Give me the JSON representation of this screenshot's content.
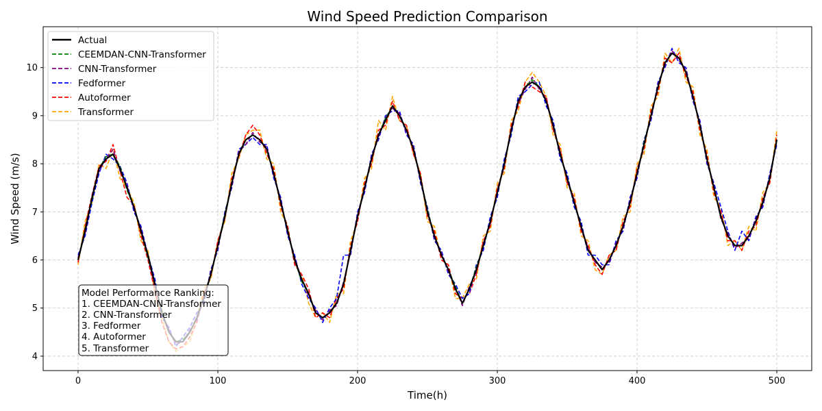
{
  "chart_data": {
    "type": "line",
    "title": "Wind Speed Prediction Comparison",
    "xlabel": "Time(h)",
    "ylabel": "Wind Speed (m/s)",
    "xlim": [
      -25,
      525
    ],
    "ylim": [
      3.7,
      10.85
    ],
    "xticks": [
      0,
      100,
      200,
      300,
      400,
      500
    ],
    "yticks": [
      4,
      5,
      6,
      7,
      8,
      9,
      10
    ],
    "grid": true,
    "legend_position": "top-left",
    "x": [
      0,
      5,
      10,
      15,
      20,
      25,
      30,
      35,
      40,
      45,
      50,
      55,
      60,
      65,
      70,
      75,
      80,
      85,
      90,
      95,
      100,
      105,
      110,
      115,
      120,
      125,
      130,
      135,
      140,
      145,
      150,
      155,
      160,
      165,
      170,
      175,
      180,
      185,
      190,
      195,
      200,
      205,
      210,
      215,
      220,
      225,
      230,
      235,
      240,
      245,
      250,
      255,
      260,
      265,
      270,
      275,
      280,
      285,
      290,
      295,
      300,
      305,
      310,
      315,
      320,
      325,
      330,
      335,
      340,
      345,
      350,
      355,
      360,
      365,
      370,
      375,
      380,
      385,
      390,
      395,
      400,
      405,
      410,
      415,
      420,
      425,
      430,
      435,
      440,
      445,
      450,
      455,
      460,
      465,
      470,
      475,
      480,
      485,
      490,
      495,
      500
    ],
    "series": [
      {
        "name": "Actual",
        "color": "#000000",
        "style": "solid",
        "values": [
          6.0,
          6.6,
          7.3,
          7.9,
          8.1,
          8.2,
          7.9,
          7.5,
          7.1,
          6.6,
          6.1,
          5.5,
          4.9,
          4.5,
          4.3,
          4.3,
          4.5,
          4.8,
          5.2,
          5.7,
          6.3,
          6.9,
          7.6,
          8.2,
          8.5,
          8.6,
          8.5,
          8.3,
          7.8,
          7.2,
          6.6,
          6.0,
          5.6,
          5.3,
          4.9,
          4.8,
          4.9,
          5.1,
          5.5,
          6.2,
          6.9,
          7.5,
          8.1,
          8.6,
          8.9,
          9.2,
          9.0,
          8.7,
          8.3,
          7.7,
          7.0,
          6.5,
          6.1,
          5.8,
          5.4,
          5.1,
          5.4,
          5.8,
          6.3,
          6.8,
          7.4,
          8.0,
          8.7,
          9.3,
          9.6,
          9.7,
          9.6,
          9.3,
          8.8,
          8.2,
          7.7,
          7.2,
          6.7,
          6.2,
          6.0,
          5.8,
          6.0,
          6.3,
          6.7,
          7.2,
          7.8,
          8.4,
          9.0,
          9.6,
          10.1,
          10.3,
          10.2,
          9.9,
          9.4,
          8.8,
          8.1,
          7.5,
          6.9,
          6.5,
          6.3,
          6.3,
          6.5,
          6.8,
          7.2,
          7.7,
          8.5
        ]
      },
      {
        "name": "CEEMDAN-CNN-Transformer",
        "color": "#008000",
        "style": "dashed",
        "values": [
          6.0,
          6.65,
          7.25,
          7.9,
          8.15,
          8.2,
          7.95,
          7.45,
          7.1,
          6.6,
          6.05,
          5.5,
          4.95,
          4.5,
          4.3,
          4.35,
          4.5,
          4.8,
          5.25,
          5.7,
          6.3,
          6.95,
          7.6,
          8.2,
          8.5,
          8.6,
          8.5,
          8.3,
          7.8,
          7.2,
          6.6,
          6.0,
          5.55,
          5.3,
          4.9,
          4.8,
          4.9,
          5.1,
          5.5,
          6.2,
          6.9,
          7.5,
          8.1,
          8.6,
          8.95,
          9.2,
          9.0,
          8.7,
          8.3,
          7.7,
          7.05,
          6.5,
          6.1,
          5.8,
          5.45,
          5.1,
          5.4,
          5.85,
          6.3,
          6.8,
          7.4,
          8.0,
          8.7,
          9.3,
          9.6,
          9.75,
          9.6,
          9.3,
          8.8,
          8.2,
          7.7,
          7.2,
          6.7,
          6.2,
          6.0,
          5.8,
          6.0,
          6.3,
          6.7,
          7.2,
          7.8,
          8.45,
          9.0,
          9.6,
          10.1,
          10.3,
          10.2,
          9.9,
          9.4,
          8.8,
          8.1,
          7.5,
          6.9,
          6.5,
          6.3,
          6.3,
          6.5,
          6.8,
          7.2,
          7.7,
          8.5
        ]
      },
      {
        "name": "CNN-Transformer",
        "color": "#800080",
        "style": "dashed",
        "values": [
          6.05,
          6.55,
          7.3,
          7.85,
          8.1,
          8.3,
          7.85,
          7.55,
          7.05,
          6.65,
          6.05,
          5.45,
          4.9,
          4.55,
          4.25,
          4.3,
          4.55,
          4.75,
          5.2,
          5.75,
          6.25,
          6.95,
          7.55,
          8.25,
          8.4,
          8.65,
          8.45,
          8.35,
          7.75,
          7.25,
          6.55,
          6.05,
          5.6,
          5.25,
          4.95,
          4.75,
          4.95,
          5.05,
          5.55,
          6.15,
          6.95,
          7.45,
          8.15,
          8.55,
          8.95,
          9.15,
          9.05,
          8.65,
          8.35,
          7.65,
          7.05,
          6.45,
          6.15,
          5.75,
          5.45,
          5.05,
          5.45,
          5.75,
          6.35,
          6.75,
          7.45,
          7.95,
          8.75,
          9.25,
          9.55,
          9.8,
          9.55,
          9.35,
          8.75,
          8.25,
          7.65,
          7.25,
          6.65,
          6.25,
          5.95,
          5.85,
          5.95,
          6.35,
          6.65,
          7.25,
          7.75,
          8.45,
          8.95,
          9.65,
          10.05,
          10.35,
          10.15,
          9.95,
          9.35,
          8.85,
          8.05,
          7.55,
          6.85,
          6.55,
          6.25,
          6.35,
          6.45,
          6.85,
          7.15,
          7.75,
          8.45
        ]
      },
      {
        "name": "Fedformer",
        "color": "#0000ff",
        "style": "dashed",
        "values": [
          6.1,
          6.5,
          7.2,
          7.8,
          8.2,
          8.1,
          7.95,
          7.6,
          7.0,
          6.7,
          6.1,
          5.6,
          4.8,
          4.6,
          4.2,
          4.4,
          4.6,
          4.9,
          5.1,
          5.8,
          6.2,
          7.0,
          7.5,
          8.3,
          8.4,
          8.55,
          8.4,
          8.4,
          7.7,
          7.3,
          6.5,
          6.1,
          5.5,
          5.2,
          5.0,
          4.7,
          5.0,
          5.2,
          6.1,
          6.1,
          7.0,
          7.4,
          8.2,
          8.5,
          9.0,
          9.1,
          9.1,
          8.6,
          8.4,
          7.6,
          7.1,
          6.4,
          6.2,
          5.7,
          5.5,
          5.2,
          5.3,
          5.9,
          6.2,
          6.9,
          7.3,
          8.1,
          8.6,
          9.4,
          9.5,
          9.65,
          9.7,
          9.2,
          8.9,
          8.1,
          7.8,
          7.1,
          6.8,
          6.1,
          6.1,
          5.9,
          5.9,
          6.4,
          6.6,
          7.3,
          7.7,
          8.5,
          8.9,
          9.7,
          10.0,
          10.4,
          10.1,
          10.0,
          9.3,
          8.9,
          8.0,
          7.6,
          7.1,
          6.6,
          6.2,
          6.6,
          6.4,
          6.9,
          7.1,
          7.8,
          8.4
        ]
      },
      {
        "name": "Autoformer",
        "color": "#ff0000",
        "style": "dashed",
        "values": [
          5.95,
          6.7,
          7.35,
          7.95,
          8.05,
          8.4,
          7.85,
          7.3,
          7.15,
          6.5,
          6.0,
          5.35,
          4.7,
          4.3,
          4.15,
          4.2,
          4.4,
          4.7,
          5.3,
          5.65,
          6.4,
          6.85,
          7.7,
          8.15,
          8.6,
          8.8,
          8.6,
          8.2,
          7.9,
          7.1,
          6.7,
          5.9,
          5.7,
          5.4,
          4.8,
          4.9,
          4.8,
          5.2,
          5.4,
          6.3,
          6.8,
          7.6,
          8.0,
          8.7,
          8.8,
          9.3,
          8.9,
          8.8,
          8.2,
          7.8,
          6.9,
          6.6,
          6.0,
          5.9,
          5.3,
          5.2,
          5.3,
          5.7,
          6.4,
          6.7,
          7.5,
          7.9,
          8.8,
          9.2,
          9.7,
          9.6,
          9.5,
          9.4,
          8.7,
          8.3,
          7.6,
          7.3,
          6.6,
          6.3,
          5.9,
          5.7,
          6.1,
          6.2,
          6.8,
          7.1,
          7.9,
          8.3,
          9.1,
          9.5,
          10.2,
          10.1,
          10.3,
          9.8,
          9.5,
          8.7,
          8.2,
          7.4,
          7.0,
          6.4,
          6.4,
          6.2,
          6.6,
          6.7,
          7.3,
          7.6,
          8.6
        ]
      },
      {
        "name": "Transformer",
        "color": "#ffa500",
        "style": "dashed",
        "values": [
          5.9,
          6.8,
          7.2,
          8.0,
          7.9,
          8.3,
          7.7,
          7.5,
          7.2,
          6.4,
          6.2,
          5.3,
          4.8,
          4.3,
          4.1,
          4.2,
          4.3,
          4.8,
          5.4,
          5.6,
          6.4,
          6.8,
          7.8,
          8.1,
          8.6,
          8.7,
          8.7,
          8.1,
          8.0,
          7.0,
          6.7,
          5.9,
          5.7,
          5.1,
          4.8,
          4.9,
          4.7,
          5.3,
          5.3,
          6.4,
          6.8,
          7.7,
          7.9,
          8.9,
          8.7,
          9.4,
          8.9,
          8.8,
          8.2,
          7.8,
          6.8,
          6.7,
          6.0,
          5.9,
          5.2,
          5.2,
          5.5,
          5.6,
          6.5,
          6.6,
          7.6,
          7.8,
          8.9,
          9.1,
          9.7,
          9.9,
          9.7,
          9.4,
          8.6,
          8.4,
          7.5,
          7.4,
          6.5,
          6.4,
          5.8,
          5.7,
          6.1,
          6.2,
          6.9,
          7.0,
          8.0,
          8.2,
          9.2,
          9.4,
          10.3,
          10.1,
          10.4,
          9.7,
          9.6,
          8.6,
          8.3,
          7.3,
          7.1,
          6.3,
          6.4,
          6.2,
          6.7,
          6.6,
          7.4,
          7.6,
          8.7
        ]
      }
    ],
    "annotation": {
      "title": "Model Performance Ranking:",
      "items": [
        "1. CEEMDAN-CNN-Transformer",
        "2. CNN-Transformer",
        "3. Fedformer",
        "4. Autoformer",
        "5. Transformer"
      ]
    }
  }
}
